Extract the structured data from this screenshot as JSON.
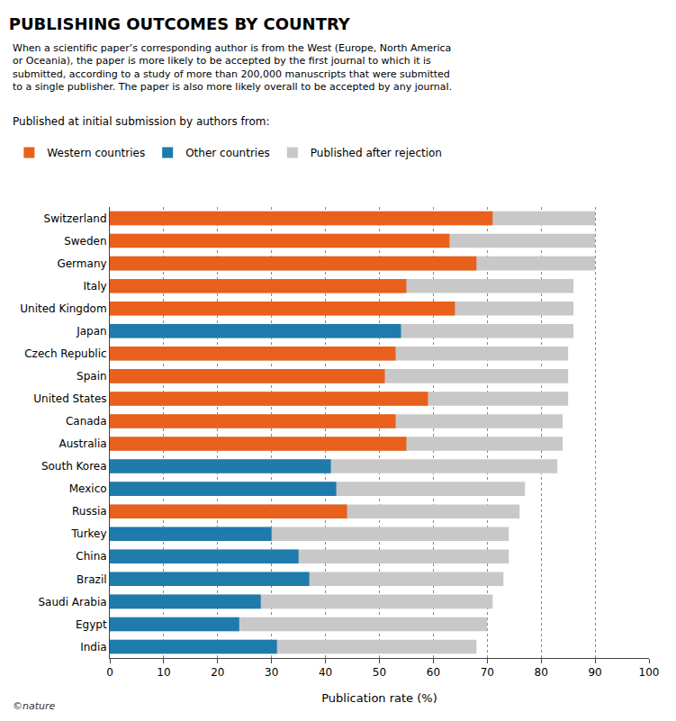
{
  "chart_data": {
    "type": "bar",
    "orientation": "horizontal",
    "title": "PUBLISHING OUTCOMES BY COUNTRY",
    "subtitle": "When a scientific paper’s corresponding author is from the West (Europe, North America\nor Oceania), the paper is more likely to be accepted by the first journal to which it is\nsubmitted, according to a study of more than 200,000 manuscripts that were submitted\nto a single publisher. The paper is also more likely overall to be accepted by any journal.",
    "xlabel": "Publication rate (%)",
    "categories": [
      "Switzerland",
      "Sweden",
      "Germany",
      "Italy",
      "United Kingdom",
      "Japan",
      "Czech Republic",
      "Spain",
      "United States",
      "Canada",
      "Australia",
      "South Korea",
      "Mexico",
      "Russia",
      "Turkey",
      "China",
      "Brazil",
      "Saudi Arabia",
      "Egypt",
      "India"
    ],
    "series": [
      {
        "name": "Published after rejection",
        "color": "#c8c8c8",
        "values": [
          90,
          90,
          90,
          86,
          86,
          86,
          85,
          85,
          85,
          84,
          84,
          83,
          77,
          76,
          74,
          74,
          73,
          71,
          70,
          68
        ]
      },
      {
        "name": "Western countries",
        "color": "#e8601c",
        "values": [
          71,
          63,
          68,
          55,
          64,
          null,
          53,
          51,
          59,
          53,
          55,
          null,
          null,
          44,
          null,
          null,
          null,
          null,
          null,
          null
        ]
      },
      {
        "name": "Other countries",
        "color": "#1f7bac",
        "values": [
          null,
          null,
          null,
          null,
          null,
          54,
          null,
          null,
          null,
          null,
          null,
          41,
          42,
          null,
          30,
          35,
          37,
          28,
          24,
          31
        ]
      }
    ],
    "xlim": [
      0,
      100
    ],
    "xticks": [
      0,
      10,
      20,
      30,
      40,
      50,
      60,
      70,
      80,
      90,
      100
    ],
    "grid": true,
    "legend": "top",
    "annotations": [
      "Published at initial submission by authors from:",
      "©nature"
    ]
  }
}
